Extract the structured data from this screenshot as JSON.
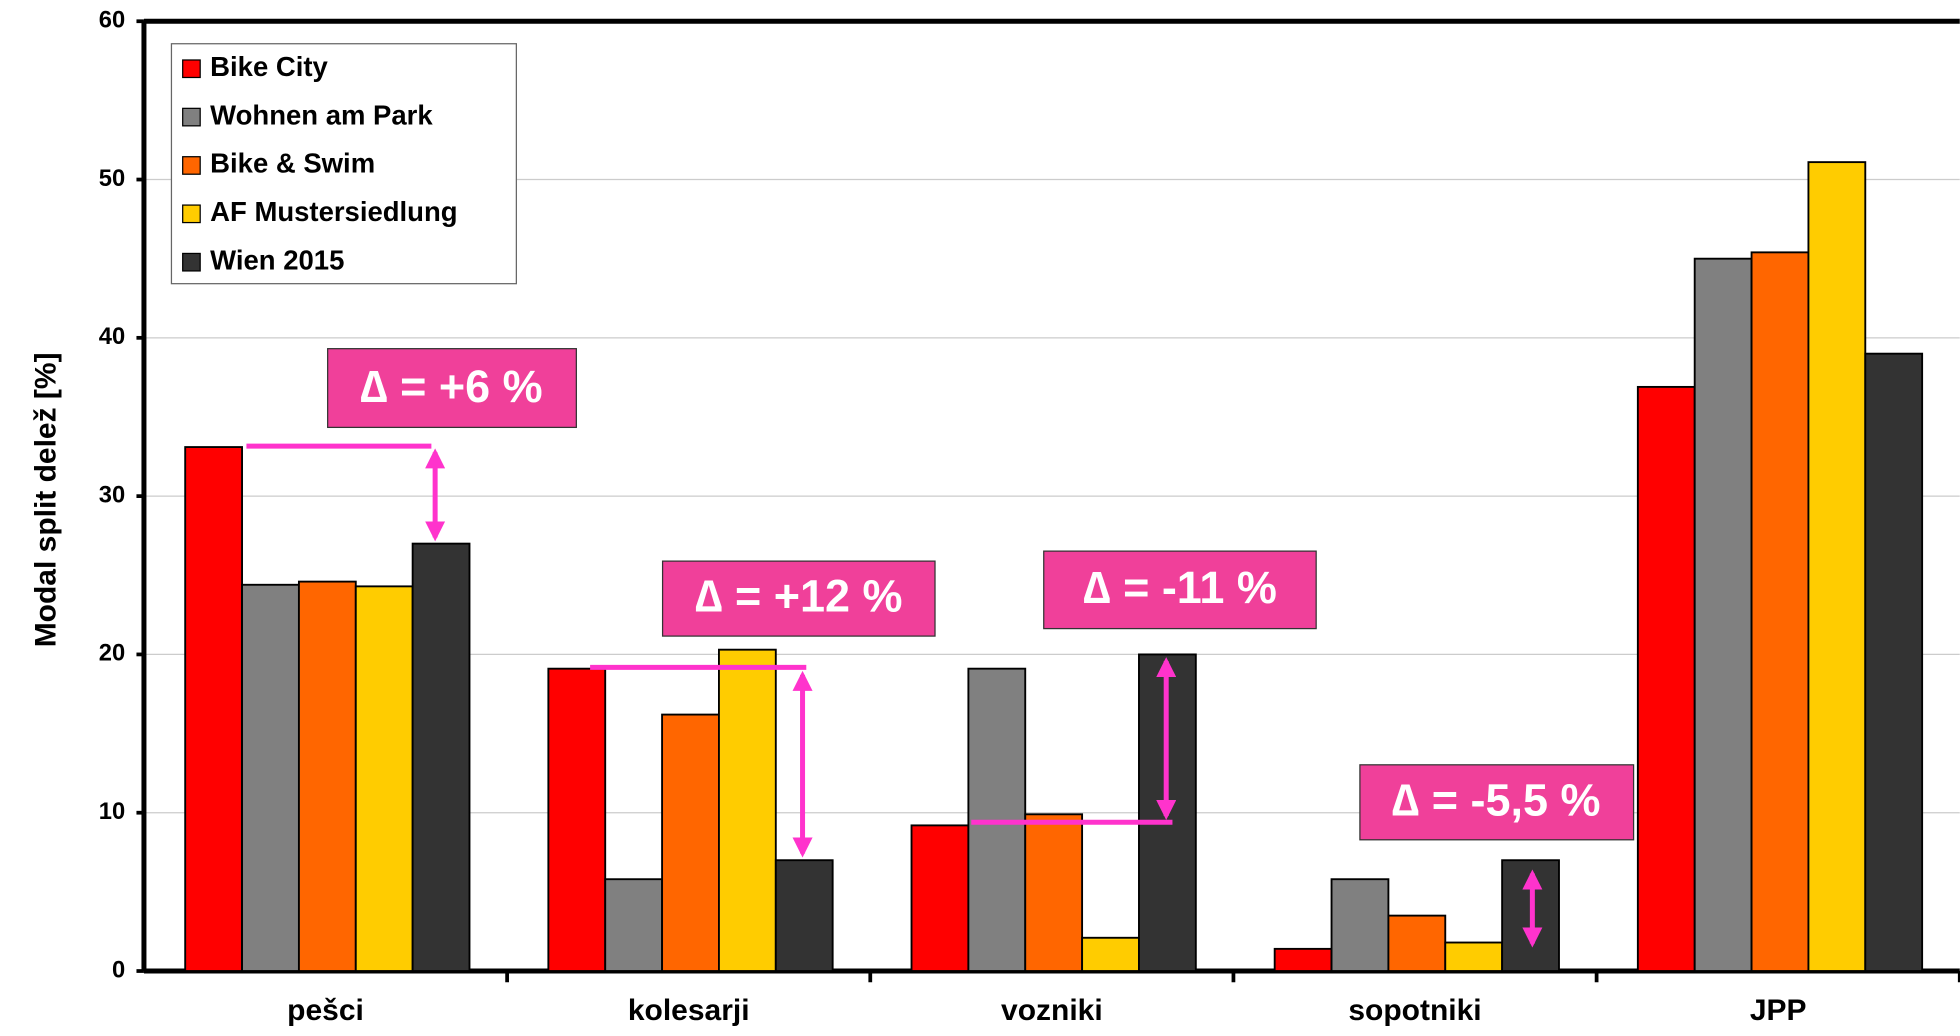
{
  "chart_data": {
    "type": "bar",
    "y_label": "Modal split delež [%]",
    "categories": [
      "pešci",
      "kolesarji",
      "vozniki",
      "sopotniki",
      "JPP"
    ],
    "series": [
      {
        "name": "Bike City",
        "color": "#ff0000",
        "values": [
          33.1,
          19.1,
          9.2,
          1.4,
          36.9
        ]
      },
      {
        "name": "Wohnen am Park",
        "color": "#808080",
        "values": [
          24.4,
          5.8,
          19.1,
          5.8,
          45
        ]
      },
      {
        "name": "Bike & Swim",
        "color": "#ff6600",
        "values": [
          24.6,
          16.2,
          9.9,
          3.5,
          45.4
        ]
      },
      {
        "name": "AF Mustersiedlung",
        "color": "#ffcc00",
        "values": [
          24.3,
          20.3,
          2.1,
          1.8,
          51.1
        ]
      },
      {
        "name": "Wien 2015",
        "color": "#333333",
        "values": [
          27,
          7,
          20,
          7,
          39
        ]
      }
    ],
    "ylim": [
      0,
      60
    ],
    "yticks": [
      0,
      10,
      20,
      30,
      40,
      50,
      60
    ],
    "grid": true,
    "legend": "upper left",
    "annotations": [
      "∆ = +6 %",
      "∆ = +12 %",
      "∆ = -11 %",
      "∆ = -5,5 %"
    ]
  }
}
